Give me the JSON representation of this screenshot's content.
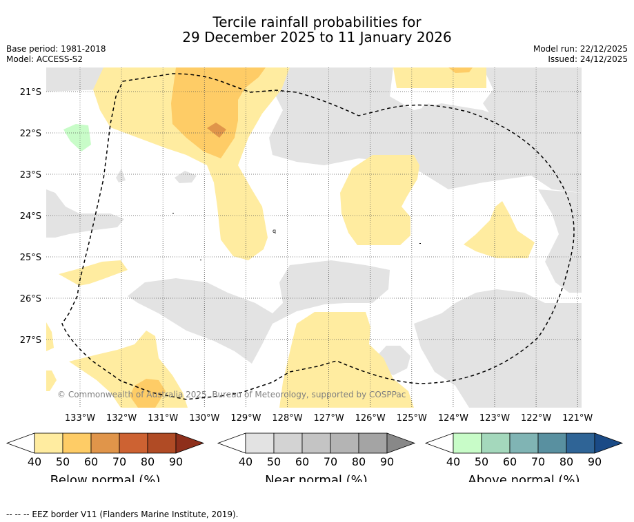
{
  "title": {
    "line1": "Tercile rainfall probabilities for",
    "line2": "29 December 2025 to 11 January 2026"
  },
  "meta": {
    "base_period": "Base period: 1981-2018",
    "model": "Model: ACCESS-S2",
    "model_run": "Model run: 22/12/2025",
    "issued": "Issued: 24/12/2025"
  },
  "map": {
    "lat_labels": [
      "21°S",
      "22°S",
      "23°S",
      "24°S",
      "25°S",
      "26°S",
      "27°S"
    ],
    "lon_labels": [
      "133°W",
      "132°W",
      "131°W",
      "130°W",
      "129°W",
      "128°W",
      "127°W",
      "126°W",
      "125°W",
      "124°W",
      "123°W",
      "122°W",
      "121°W"
    ],
    "copyright": "© Commonwealth of Australia 2025, Bureau of Meteorology, supported by COSPPac",
    "colors": {
      "near_normal": "#e3e3e3",
      "below_50": "#ffeca0",
      "below_60": "#fecc66",
      "below_70": "#e0954a",
      "above_50": "#c8fcc8",
      "eez_border": "#000000"
    }
  },
  "colorbars": [
    {
      "name": "Below normal (%)",
      "ticks": [
        "40",
        "50",
        "60",
        "70",
        "80",
        "90"
      ],
      "colors": [
        "#ffffff",
        "#ffeca0",
        "#fecc66",
        "#e0954a",
        "#cd6232",
        "#b04b25",
        "#8e2f1b"
      ]
    },
    {
      "name": "Near normal (%)",
      "ticks": [
        "40",
        "50",
        "60",
        "70",
        "80",
        "90"
      ],
      "colors": [
        "#ffffff",
        "#e3e3e3",
        "#d3d3d3",
        "#c4c4c4",
        "#b4b4b4",
        "#a4a4a4",
        "#888888"
      ]
    },
    {
      "name": "Above normal (%)",
      "ticks": [
        "40",
        "50",
        "60",
        "70",
        "80",
        "90"
      ],
      "colors": [
        "#ffffff",
        "#c8fcc8",
        "#a4d8bc",
        "#80b4b4",
        "#5990a0",
        "#2f6496",
        "#1a4a86"
      ]
    }
  ],
  "footer": "--  --  -- EEZ border V11 (Flanders Marine Institute, 2019)."
}
